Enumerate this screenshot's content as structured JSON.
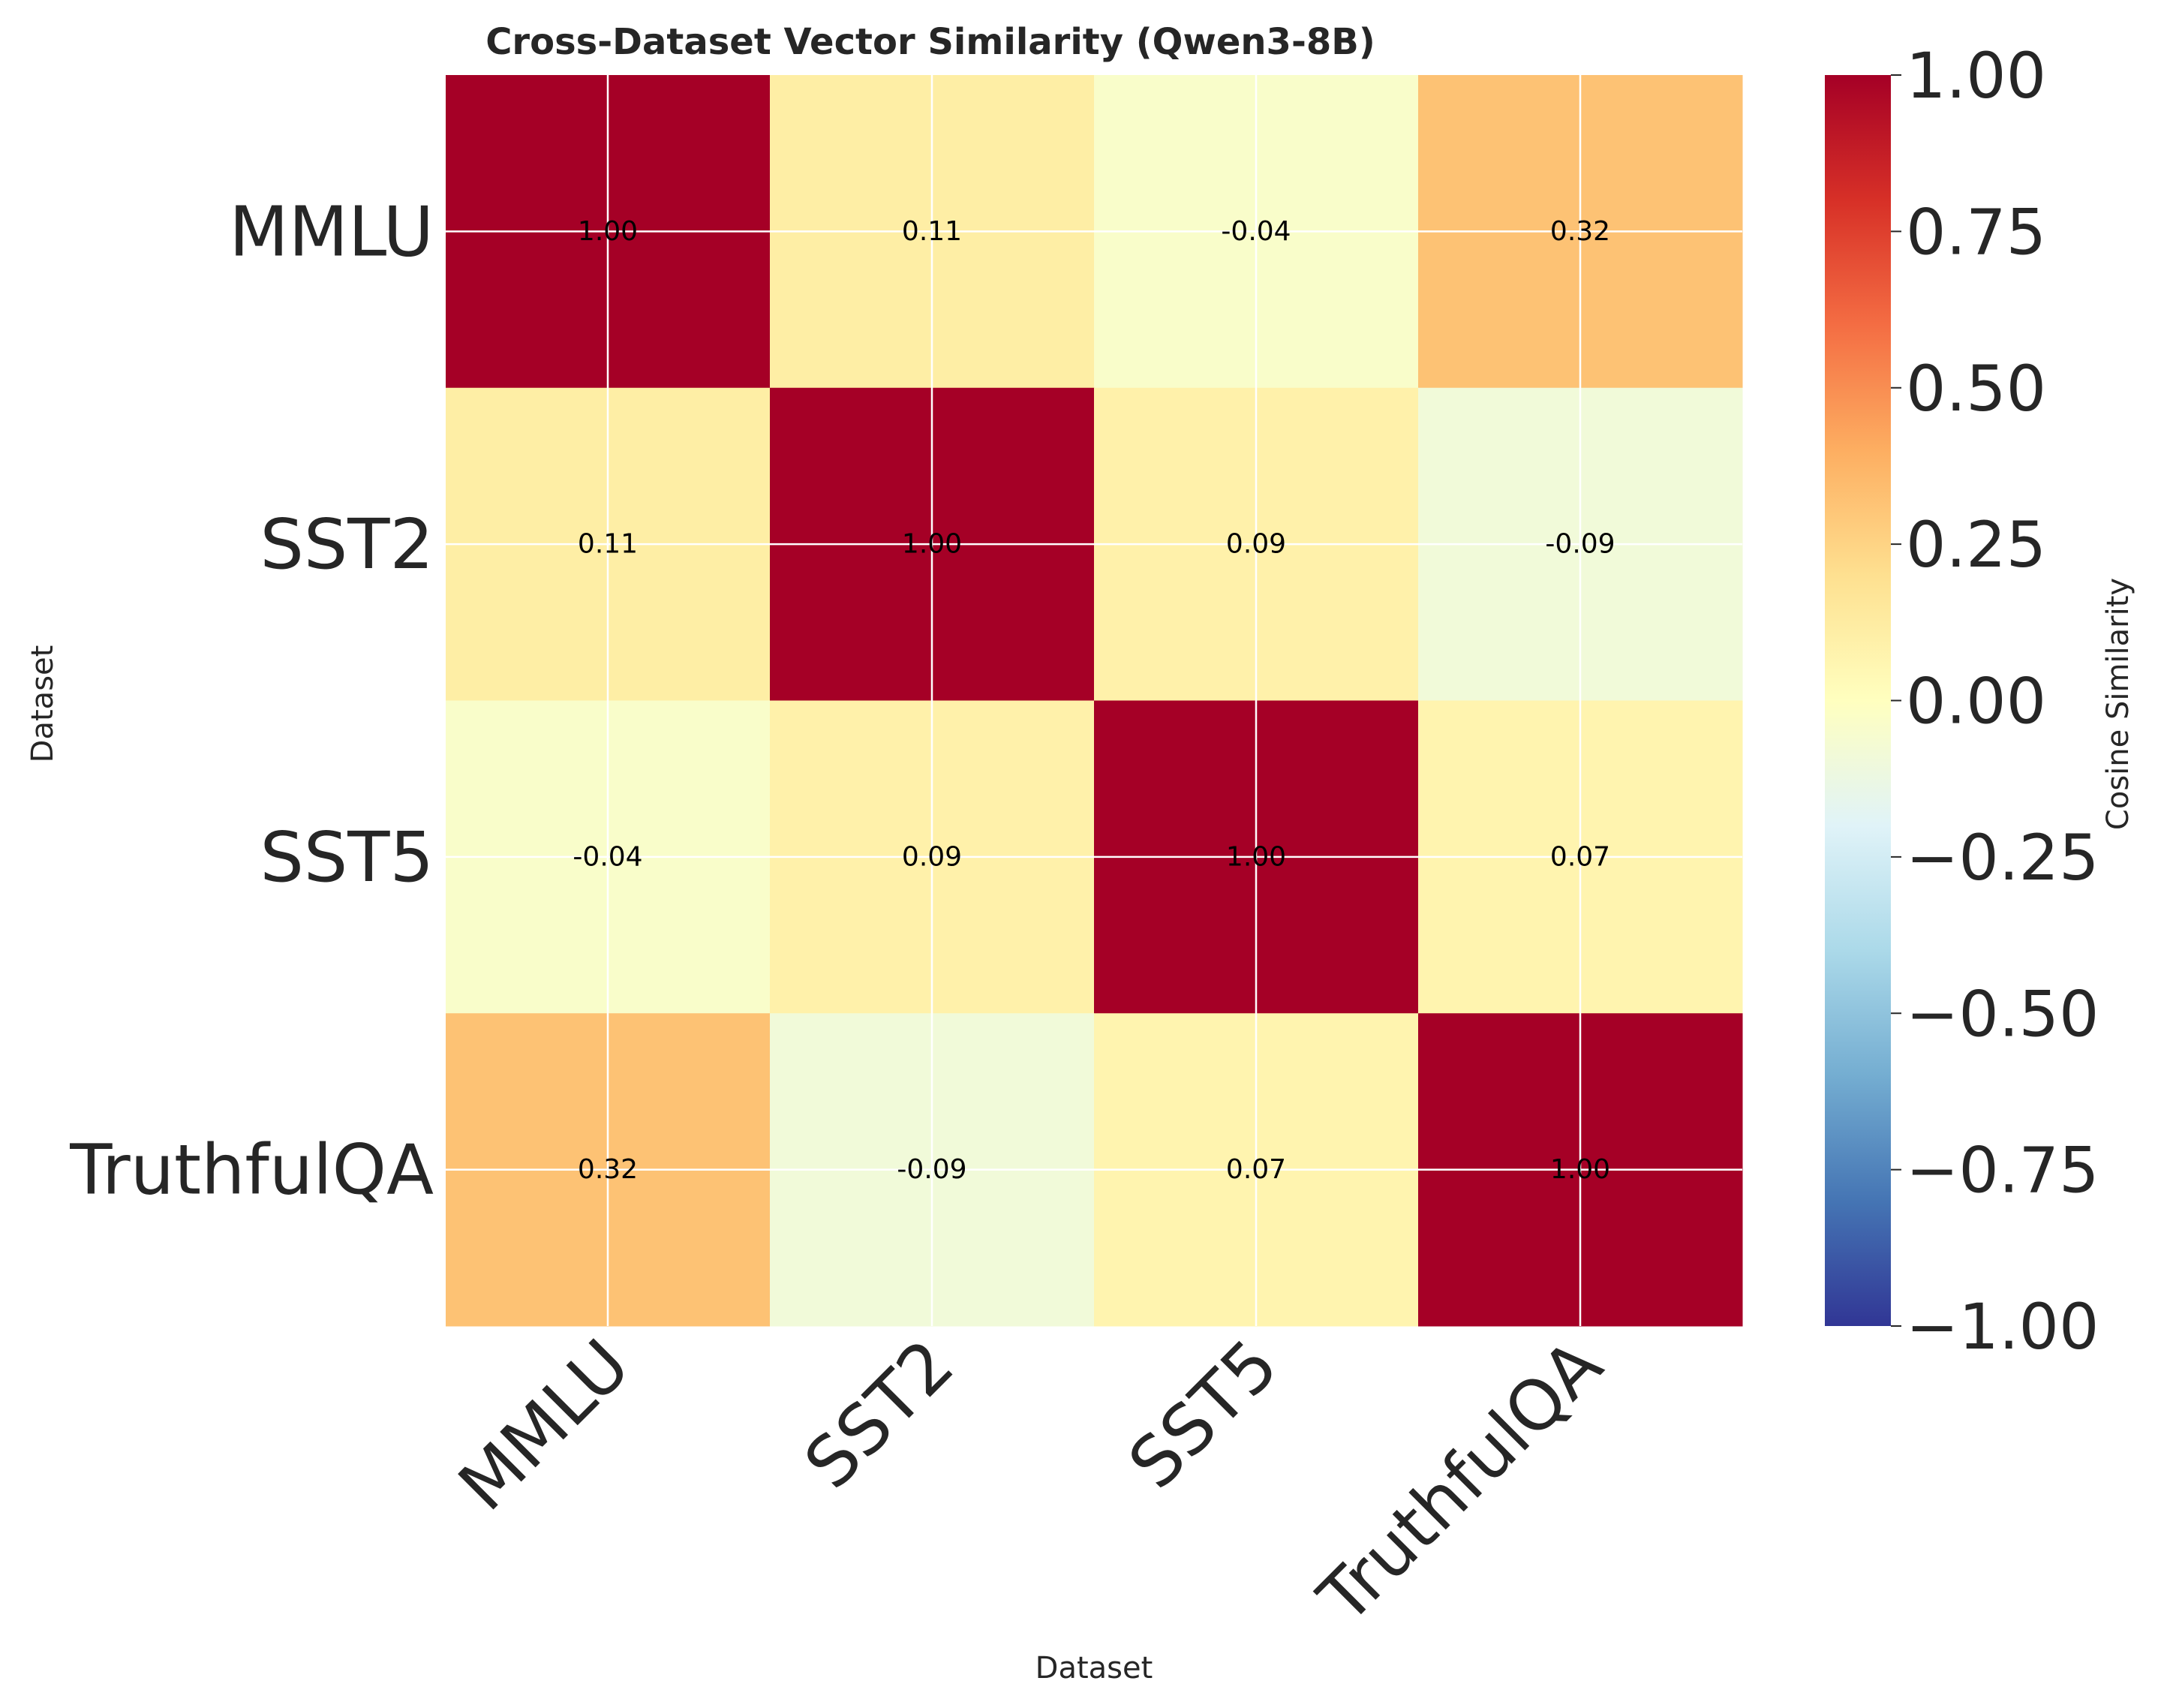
{
  "chart_data": {
    "type": "heatmap",
    "title": "Cross-Dataset Vector Similarity (Qwen3-8B)",
    "xlabel": "Dataset",
    "ylabel": "Dataset",
    "x_categories": [
      "MMLU",
      "SST2",
      "SST5",
      "TruthfulQA"
    ],
    "y_categories": [
      "MMLU",
      "SST2",
      "SST5",
      "TruthfulQA"
    ],
    "matrix": [
      [
        1.0,
        0.11,
        -0.04,
        0.32
      ],
      [
        0.11,
        1.0,
        0.09,
        -0.09
      ],
      [
        -0.04,
        0.09,
        1.0,
        0.07
      ],
      [
        0.32,
        -0.09,
        0.07,
        1.0
      ]
    ],
    "value_format_decimals": 2,
    "colorbar": {
      "label": "Cosine Similarity",
      "range": [
        -1.0,
        1.0
      ],
      "ticks": [
        "1.00",
        "0.75",
        "0.50",
        "0.25",
        "0.00",
        "−0.25",
        "−0.50",
        "−0.75",
        "−1.00"
      ],
      "colormap": "RdYlBu_r",
      "colors": [
        "#313695",
        "#4575b4",
        "#74add1",
        "#abd9e9",
        "#e0f3f8",
        "#ffffbf",
        "#fee090",
        "#fdae61",
        "#f46d43",
        "#d73027",
        "#a50026"
      ]
    },
    "grid": true,
    "x_tick_rotation_deg": 45
  }
}
